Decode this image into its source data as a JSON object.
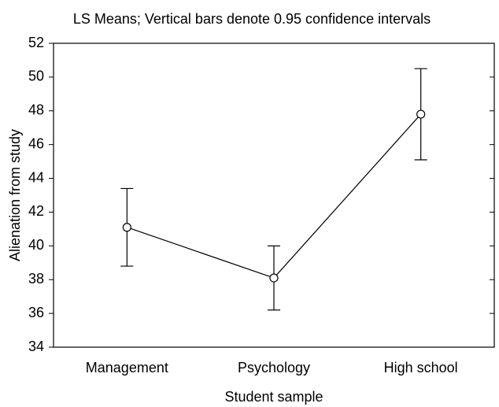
{
  "chart_data": {
    "type": "line",
    "title": "LS Means; Vertical bars denote 0.95 confidence intervals",
    "x_label": "Student sample",
    "y_label": "Alienation from study",
    "categories": [
      "Management",
      "Psychology",
      "High school"
    ],
    "values": [
      41.1,
      38.1,
      47.8
    ],
    "errors": [
      2.3,
      1.9,
      2.7
    ],
    "color": "#000000",
    "ylim": [
      34,
      52
    ],
    "yticks": [
      34,
      36,
      38,
      40,
      42,
      44,
      46,
      48,
      50,
      52
    ],
    "grid": false
  }
}
